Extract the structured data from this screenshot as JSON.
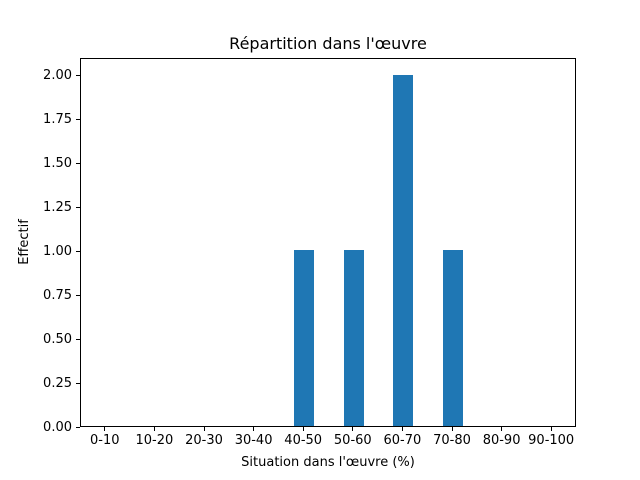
{
  "figure": {
    "background_color": "#ffffff",
    "spine_color": "#000000",
    "text_color": "#000000"
  },
  "chart_data": {
    "type": "bar",
    "title": "Répartition dans l'œuvre",
    "xlabel": "Situation dans l'œuvre (%)",
    "ylabel": "Effectif",
    "categories": [
      "0-10",
      "10-20",
      "20-30",
      "30-40",
      "40-50",
      "50-60",
      "60-70",
      "70-80",
      "80-90",
      "90-100"
    ],
    "values": [
      0,
      0,
      0,
      0,
      1,
      1,
      2,
      1,
      0,
      0
    ],
    "ylim": [
      0,
      2.1
    ],
    "y_ticks": [
      {
        "value": 0.0,
        "label": "0.00"
      },
      {
        "value": 0.25,
        "label": "0.25"
      },
      {
        "value": 0.5,
        "label": "0.50"
      },
      {
        "value": 0.75,
        "label": "0.75"
      },
      {
        "value": 1.0,
        "label": "1.00"
      },
      {
        "value": 1.25,
        "label": "1.25"
      },
      {
        "value": 1.5,
        "label": "1.50"
      },
      {
        "value": 1.75,
        "label": "1.75"
      },
      {
        "value": 2.0,
        "label": "2.00"
      }
    ],
    "bar_color": "#1f77b4",
    "bar_width_fraction": 0.4,
    "grid": false,
    "legend": null
  }
}
